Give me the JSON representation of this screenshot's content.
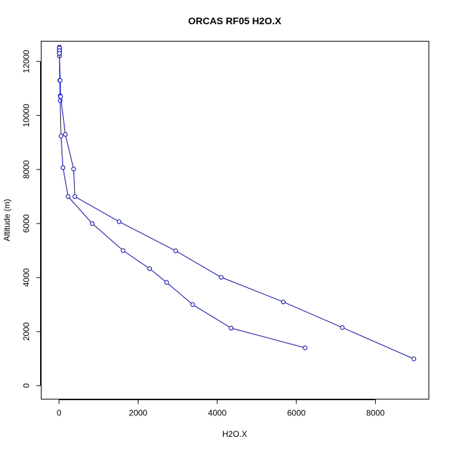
{
  "chart_data": {
    "type": "line",
    "title": "ORCAS RF05 H2O.X",
    "xlabel": "H2O.X",
    "ylabel": "Altitude (m)",
    "xlim": [
      -450,
      9350
    ],
    "ylim": [
      -500,
      12750
    ],
    "x_ticks": [
      0,
      2000,
      4000,
      6000,
      8000
    ],
    "y_ticks": [
      0,
      2000,
      4000,
      6000,
      8000,
      10000,
      12000
    ],
    "grid": false,
    "legend": "none",
    "color": "#0000ff",
    "series": [
      {
        "points": [
          {
            "x": 6220,
            "y": 1400
          },
          {
            "x": 4350,
            "y": 2130
          },
          {
            "x": 3380,
            "y": 3000
          },
          {
            "x": 2720,
            "y": 3820
          },
          {
            "x": 2290,
            "y": 4330
          },
          {
            "x": 1620,
            "y": 5000
          },
          {
            "x": 840,
            "y": 6000
          },
          {
            "x": 230,
            "y": 7000
          },
          {
            "x": 100,
            "y": 8070
          },
          {
            "x": 50,
            "y": 9240
          },
          {
            "x": 30,
            "y": 10550
          },
          {
            "x": 30,
            "y": 10730
          },
          {
            "x": 20,
            "y": 11300
          },
          {
            "x": 10,
            "y": 12200
          },
          {
            "x": 10,
            "y": 12300
          },
          {
            "x": 10,
            "y": 12350
          },
          {
            "x": 10,
            "y": 12400
          },
          {
            "x": 10,
            "y": 12450
          },
          {
            "x": 10,
            "y": 12500
          },
          {
            "x": 10,
            "y": 12530
          }
        ]
      },
      {
        "points": [
          {
            "x": 10,
            "y": 12500
          },
          {
            "x": 10,
            "y": 12400
          },
          {
            "x": 10,
            "y": 12300
          },
          {
            "x": 30,
            "y": 11300
          },
          {
            "x": 40,
            "y": 10700
          },
          {
            "x": 160,
            "y": 9300
          },
          {
            "x": 370,
            "y": 8020
          },
          {
            "x": 400,
            "y": 7000
          },
          {
            "x": 1520,
            "y": 6070
          },
          {
            "x": 2950,
            "y": 4990
          },
          {
            "x": 4100,
            "y": 4010
          },
          {
            "x": 5670,
            "y": 3100
          },
          {
            "x": 7160,
            "y": 2150
          },
          {
            "x": 8970,
            "y": 990
          }
        ]
      }
    ]
  }
}
